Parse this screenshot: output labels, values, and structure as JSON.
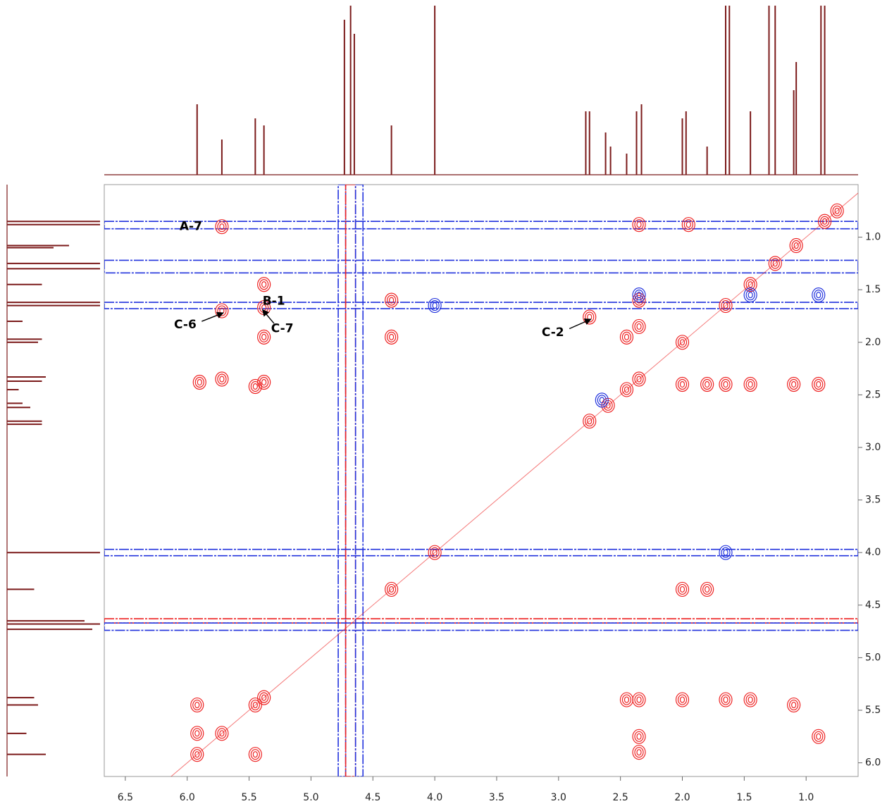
{
  "chart_data": {
    "type": "contour2d",
    "xlim": [
      6.67,
      0.58
    ],
    "ylim": [
      0.5,
      6.13
    ],
    "xticks": [
      6.5,
      {
        "value": 6.0,
        "label": "6.0"
      },
      5.5,
      {
        "value": 5.0,
        "label": "5.0"
      },
      4.5,
      {
        "value": 4.0,
        "label": "4.0"
      },
      3.5,
      {
        "value": 3.0,
        "label": "3.0"
      },
      2.5,
      {
        "value": 2.0,
        "label": "2.0"
      },
      1.5,
      {
        "value": 1.0,
        "label": "1.0"
      }
    ],
    "yticks": [
      {
        "value": 1.0,
        "label": "1.0"
      },
      1.5,
      {
        "value": 2.0,
        "label": "2.0"
      },
      2.5,
      {
        "value": 3.0,
        "label": "3.0"
      },
      3.5,
      {
        "value": 4.0,
        "label": "4.0"
      },
      4.5,
      {
        "value": 5.0,
        "label": "5.0"
      },
      5.5,
      {
        "value": 6.0,
        "label": "6.0"
      }
    ],
    "projection": {
      "color": "#7b1a1a",
      "shifts": [
        5.92,
        5.72,
        5.45,
        5.38,
        4.73,
        4.68,
        4.65,
        4.35,
        4.0,
        2.78,
        2.75,
        2.62,
        2.58,
        2.45,
        2.37,
        2.33,
        2.0,
        1.97,
        1.8,
        1.65,
        1.62,
        1.45,
        1.3,
        1.25,
        1.1,
        1.08,
        0.88,
        0.85
      ],
      "intensities": [
        0.5,
        0.25,
        0.4,
        0.35,
        1.1,
        1.2,
        1.0,
        0.35,
        1.2,
        0.45,
        0.45,
        0.3,
        0.2,
        0.15,
        0.45,
        0.5,
        0.4,
        0.45,
        0.2,
        1.2,
        1.2,
        0.45,
        1.2,
        1.2,
        0.6,
        0.8,
        1.2,
        1.2
      ]
    },
    "bands": [
      {
        "axis": "y",
        "from": 0.85,
        "to": 0.92,
        "color": "#2233dd"
      },
      {
        "axis": "y",
        "from": 1.22,
        "to": 1.34,
        "color": "#2233dd"
      },
      {
        "axis": "y",
        "from": 1.62,
        "to": 1.68,
        "color": "#2233dd"
      },
      {
        "axis": "y",
        "from": 3.97,
        "to": 4.03,
        "color": "#2233dd"
      },
      {
        "axis": "y",
        "from": 4.63,
        "to": 4.67,
        "color": "#ee2222"
      },
      {
        "axis": "y",
        "from": 4.67,
        "to": 4.74,
        "color": "#2233dd"
      },
      {
        "axis": "x",
        "from": 4.78,
        "to": 4.72,
        "color": "#2233dd"
      },
      {
        "axis": "x",
        "from": 4.72,
        "to": 4.64,
        "color": "#ee2222"
      },
      {
        "axis": "x",
        "from": 4.64,
        "to": 4.58,
        "color": "#2233dd"
      }
    ],
    "series": [
      {
        "color": "#ee2222",
        "x": [
          0.75,
          0.85,
          1.08,
          1.25,
          1.45,
          1.65,
          2.0,
          2.35,
          2.45,
          2.6,
          2.75,
          4.0,
          4.35,
          5.45,
          5.38,
          5.72,
          5.92,
          5.72,
          5.38,
          5.72,
          5.38,
          2.75,
          5.38,
          4.35,
          4.35,
          5.9,
          5.72,
          5.45,
          5.38,
          2.45,
          2.35,
          2.35,
          2.35,
          1.95,
          2.0,
          1.8,
          1.65,
          1.45,
          1.1,
          0.9,
          2.0,
          1.8,
          2.45,
          2.35,
          2.0,
          1.65,
          1.45,
          1.1,
          0.9,
          2.35,
          2.35,
          5.92,
          5.45,
          5.92
        ],
        "y": [
          0.75,
          0.85,
          1.08,
          1.25,
          1.45,
          1.65,
          2.0,
          2.35,
          2.45,
          2.6,
          2.75,
          4.0,
          4.35,
          5.45,
          5.38,
          5.72,
          5.92,
          0.9,
          1.45,
          1.7,
          1.67,
          1.76,
          1.95,
          1.6,
          1.95,
          2.38,
          2.35,
          2.42,
          2.38,
          1.95,
          1.85,
          1.6,
          0.88,
          0.88,
          2.4,
          2.4,
          2.4,
          2.4,
          2.4,
          2.4,
          4.35,
          4.35,
          5.4,
          5.4,
          5.4,
          5.4,
          5.4,
          5.45,
          5.75,
          5.75,
          5.9,
          5.45,
          5.92,
          5.72
        ]
      },
      {
        "color": "#2233dd",
        "x": [
          4.0,
          1.65,
          2.65,
          1.45,
          2.35,
          0.9
        ],
        "y": [
          1.65,
          4.0,
          2.55,
          1.55,
          1.55,
          1.55
        ]
      }
    ],
    "annotations": [
      {
        "text": "A-7",
        "x": 5.72,
        "y": 0.9
      },
      {
        "text": "B-1",
        "x": 5.38,
        "y": 1.45
      },
      {
        "text": "C-6",
        "x": 5.72,
        "y": 1.7
      },
      {
        "text": "C-7",
        "x": 5.38,
        "y": 1.67
      },
      {
        "text": "C-2",
        "x": 2.75,
        "y": 1.76
      }
    ]
  }
}
